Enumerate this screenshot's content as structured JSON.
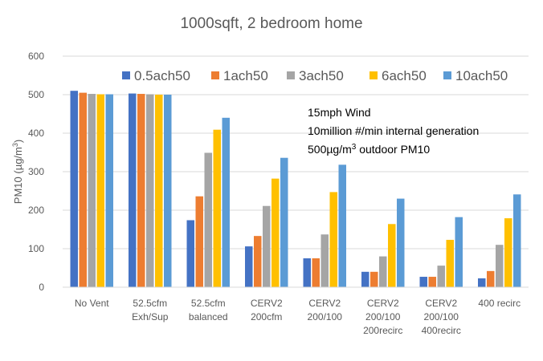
{
  "chart_data": {
    "type": "bar",
    "title": "1000sqft, 2 bedroom home",
    "ylabel_main": "PM10 (µg/m",
    "ylabel_sup": "3",
    "ylabel_end": ")",
    "ylim": [
      0,
      600
    ],
    "yticks": [
      0,
      100,
      200,
      300,
      400,
      500,
      600
    ],
    "grid": true,
    "legend_position": "top",
    "categories": [
      [
        "No Vent"
      ],
      [
        "52.5cfm",
        "Exh/Sup"
      ],
      [
        "52.5cfm",
        "balanced"
      ],
      [
        "CERV2",
        "200cfm"
      ],
      [
        "CERV2",
        "200/100"
      ],
      [
        "CERV2",
        "200/100",
        "200recirc"
      ],
      [
        "CERV2",
        "200/100",
        "400recirc"
      ],
      [
        "400 recirc"
      ]
    ],
    "series": [
      {
        "name": "0.5ach50",
        "color": "#4472C4",
        "values": [
          510,
          503,
          174,
          106,
          75,
          40,
          27,
          23
        ]
      },
      {
        "name": "1ach50",
        "color": "#ED7D31",
        "values": [
          505,
          502,
          236,
          133,
          75,
          40,
          27,
          42
        ]
      },
      {
        "name": "3ach50",
        "color": "#A5A5A5",
        "values": [
          502,
          501,
          349,
          211,
          137,
          80,
          56,
          110
        ]
      },
      {
        "name": "6ach50",
        "color": "#FFC000",
        "values": [
          501,
          500,
          409,
          282,
          247,
          164,
          123,
          179
        ]
      },
      {
        "name": "10ach50",
        "color": "#5B9BD5",
        "values": [
          501,
          500,
          440,
          336,
          318,
          230,
          182,
          241
        ]
      }
    ],
    "annotation": {
      "line1": "15mph Wind",
      "line2": "10million #/min internal generation",
      "line3_pre": "500µg/m",
      "line3_sup": "3",
      "line3_post": "  outdoor PM10"
    }
  }
}
